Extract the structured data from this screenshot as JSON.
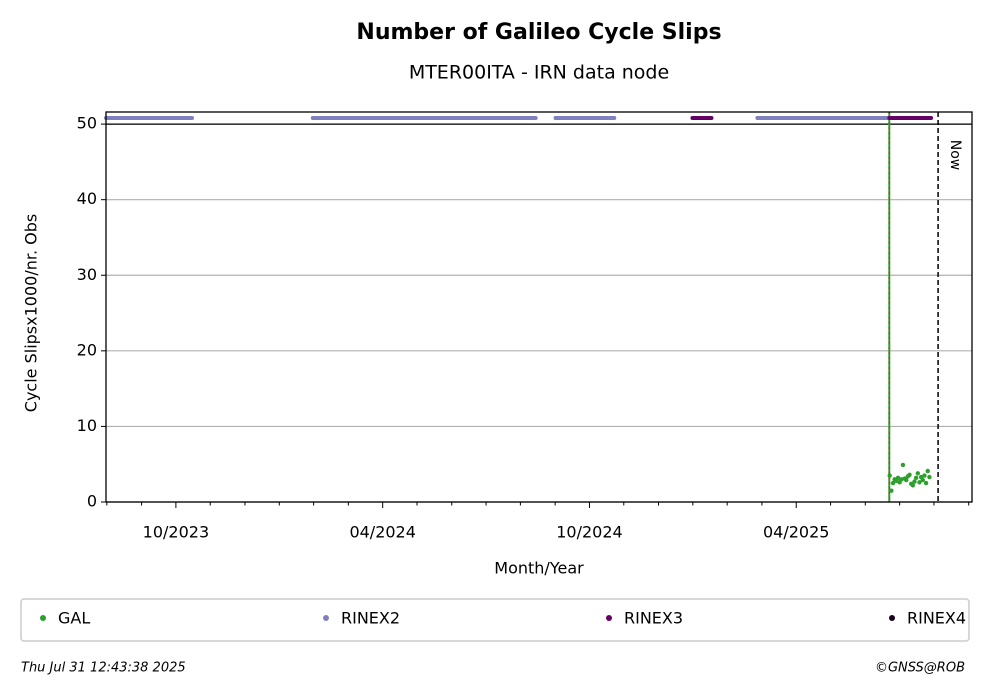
{
  "chart_data": {
    "type": "scatter",
    "title": "Number of Galileo Cycle Slips",
    "subtitle": "MTER00ITA - IRN data node",
    "xlabel": "Month/Year",
    "ylabel": "Cycle Slipsx1000/nr. Obs",
    "xlim": [
      2023.581,
      2025.675
    ],
    "ylim": [
      0,
      51.6
    ],
    "xticks": [
      {
        "value": 2023.75,
        "label": "10/2023"
      },
      {
        "value": 2024.25,
        "label": "04/2024"
      },
      {
        "value": 2024.75,
        "label": "10/2024"
      },
      {
        "value": 2025.25,
        "label": "04/2025"
      }
    ],
    "xminorticks": [
      2023.583,
      2023.667,
      2023.833,
      2023.917,
      2024.0,
      2024.083,
      2024.167,
      2024.333,
      2024.417,
      2024.5,
      2024.583,
      2024.667,
      2024.833,
      2024.917,
      2025.0,
      2025.083,
      2025.167,
      2025.333,
      2025.417,
      2025.5,
      2025.583,
      2025.667
    ],
    "yticks": [
      0,
      10,
      20,
      30,
      40,
      50
    ],
    "grid": true,
    "hline": 50,
    "start_line": 2025.475,
    "now": {
      "x": 2025.593,
      "label": "Now"
    },
    "legend": "bottom",
    "series": [
      {
        "name": "GAL",
        "color": "#2ca02c",
        "x": [
          2025.476,
          2025.48,
          2025.484,
          2025.488,
          2025.492,
          2025.496,
          2025.5,
          2025.504,
          2025.508,
          2025.512,
          2025.516,
          2025.52,
          2025.524,
          2025.528,
          2025.532,
          2025.536,
          2025.54,
          2025.544,
          2025.548,
          2025.552,
          2025.556,
          2025.56,
          2025.564,
          2025.568,
          2025.572
        ],
        "values": [
          3.5,
          1.5,
          2.5,
          3,
          2.8,
          3.2,
          2.6,
          3,
          4.9,
          3.1,
          2.9,
          3.4,
          3.6,
          2.4,
          2.2,
          2.7,
          3.2,
          3.8,
          2.6,
          3.3,
          2.9,
          3.5,
          2.5,
          4.1,
          3.3
        ]
      },
      {
        "name": "RINEX2",
        "color": "#8080c0",
        "y": 50.8,
        "segments": [
          {
            "start": 2023.581,
            "end": 2023.789
          },
          {
            "start": 2024.081,
            "end": 2024.62
          },
          {
            "start": 2024.668,
            "end": 2024.81
          },
          {
            "start": 2025.156,
            "end": 2025.475
          }
        ]
      },
      {
        "name": "RINEX3",
        "color": "#660066",
        "y": 50.8,
        "segments": [
          {
            "start": 2024.999,
            "end": 2025.045
          },
          {
            "start": 2025.475,
            "end": 2025.576
          }
        ]
      },
      {
        "name": "RINEX4",
        "color": "#1a0022",
        "y": 50.8,
        "segments": []
      }
    ]
  },
  "footer": {
    "timestamp": "Thu Jul 31 12:43:38 2025",
    "credit": "©GNSS@ROB"
  }
}
